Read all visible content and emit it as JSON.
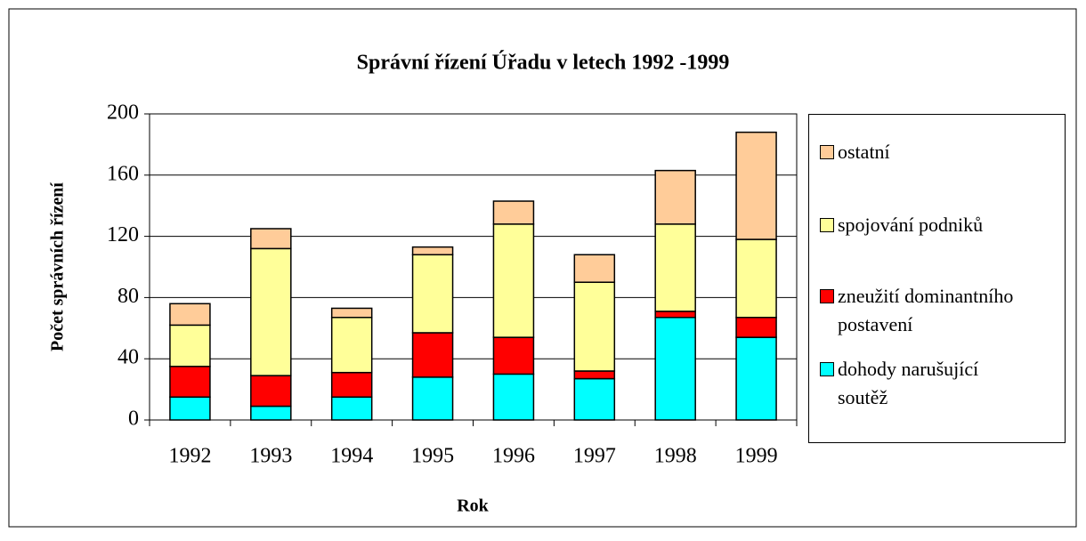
{
  "chart_data": {
    "type": "stacked_bar",
    "title": "Správní řízení Úřadu v letech 1992 -1999",
    "x_label": "Rok",
    "y_label": "Počet správních řízení",
    "categories": [
      "1992",
      "1993",
      "1994",
      "1995",
      "1996",
      "1997",
      "1998",
      "1999"
    ],
    "series": [
      {
        "name": "dohody narušující soutěž",
        "color": "#00ffff",
        "values": [
          15,
          9,
          15,
          28,
          30,
          27,
          67,
          54
        ]
      },
      {
        "name": "zneužití dominantního postavení",
        "color": "#ff0000",
        "values": [
          20,
          20,
          16,
          29,
          24,
          5,
          4,
          13
        ]
      },
      {
        "name": "spojování podniků",
        "color": "#ffff99",
        "values": [
          27,
          83,
          36,
          51,
          74,
          58,
          57,
          51
        ]
      },
      {
        "name": "ostatní",
        "color": "#ffcc99",
        "values": [
          14,
          13,
          6,
          5,
          15,
          18,
          35,
          70
        ]
      }
    ],
    "ylim": [
      0,
      200
    ],
    "yticks": [
      0,
      40,
      80,
      120,
      160,
      200
    ],
    "grid": true,
    "legend": "right"
  }
}
